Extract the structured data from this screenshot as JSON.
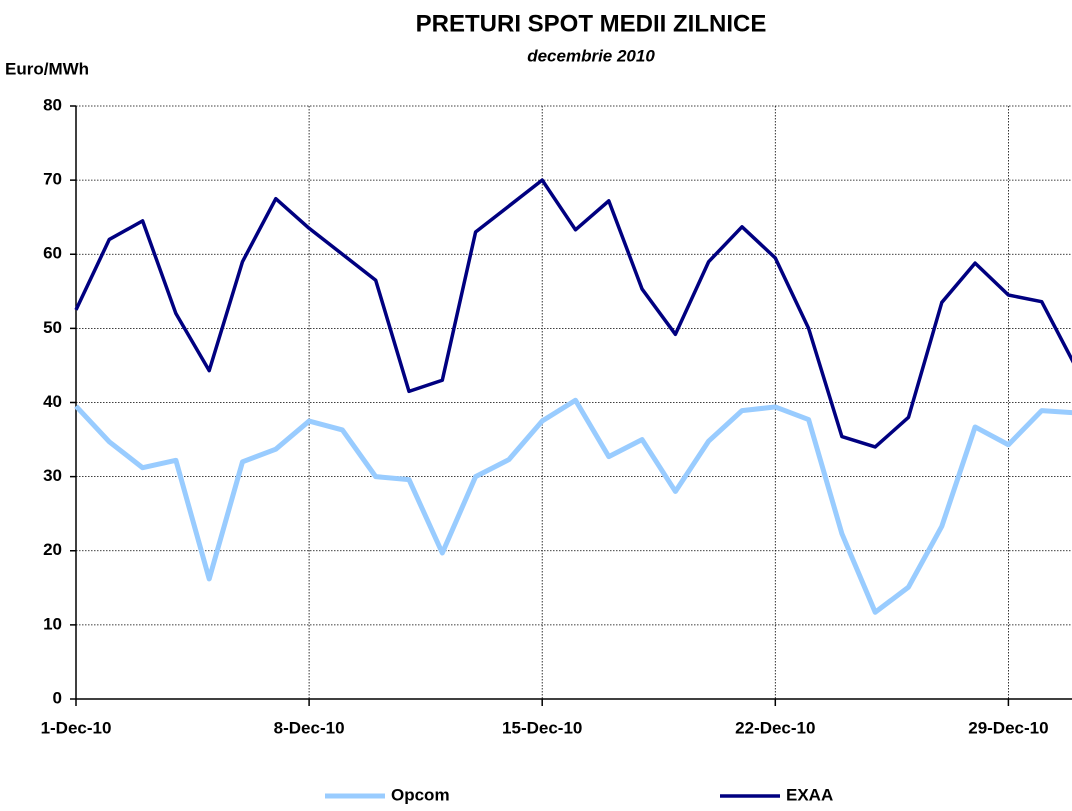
{
  "chart_data": {
    "type": "line",
    "title": "PRETURI SPOT MEDII ZILNICE",
    "subtitle": "decembrie 2010",
    "y_label": "Euro/MWh",
    "categories": [
      "1-Dec-10",
      null,
      null,
      null,
      null,
      null,
      null,
      "8-Dec-10",
      null,
      null,
      null,
      null,
      null,
      null,
      "15-Dec-10",
      null,
      null,
      null,
      null,
      null,
      null,
      "22-Dec-10",
      null,
      null,
      null,
      null,
      null,
      null,
      "29-Dec-10",
      null,
      null
    ],
    "series": [
      {
        "name": "Opcom",
        "color": "#99ccff",
        "values": [
          39.5,
          34.7,
          31.2,
          32.2,
          16.2,
          32,
          33.7,
          37.5,
          36.3,
          30,
          29.6,
          19.7,
          30,
          32.3,
          37.5,
          40.3,
          32.7,
          35,
          28,
          34.8,
          38.9,
          39.4,
          37.7,
          22.3,
          11.7,
          15.1,
          23.3,
          36.7,
          34.3,
          38.9,
          38.6
        ]
      },
      {
        "name": "EXAA",
        "color": "#000080",
        "values": [
          52.5,
          62,
          64.5,
          52,
          44.3,
          59,
          67.5,
          63.5,
          60,
          56.5,
          41.5,
          43,
          63,
          66.5,
          70,
          63.3,
          67.2,
          55.3,
          49.2,
          59,
          63.7,
          59.5,
          50,
          35.4,
          34,
          38,
          53.5,
          58.8,
          54.5,
          53.6,
          45
        ]
      }
    ],
    "ylim": [
      0,
      80
    ],
    "yticks": [
      0,
      10,
      20,
      30,
      40,
      50,
      60,
      70,
      80
    ],
    "grid": true,
    "legend": "bottom"
  }
}
